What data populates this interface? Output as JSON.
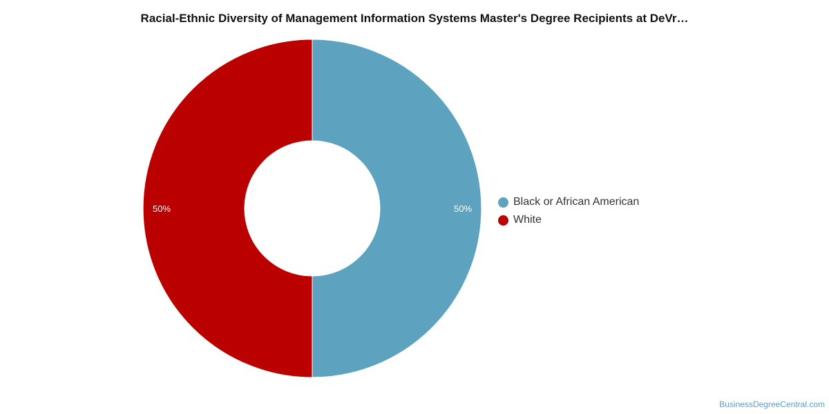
{
  "chart_data": {
    "type": "pie",
    "variant": "donut",
    "title": "Racial-Ethnic Diversity of Management Information Systems Master's Degree Recipients at DeVr…",
    "categories": [
      "Black or African American",
      "White"
    ],
    "values": [
      50,
      50
    ],
    "labels": [
      "50%",
      "50%"
    ],
    "colors": [
      "#5da2be",
      "#bb0000"
    ],
    "legend_position": "right"
  },
  "watermark": "BusinessDegreeCentral.com"
}
